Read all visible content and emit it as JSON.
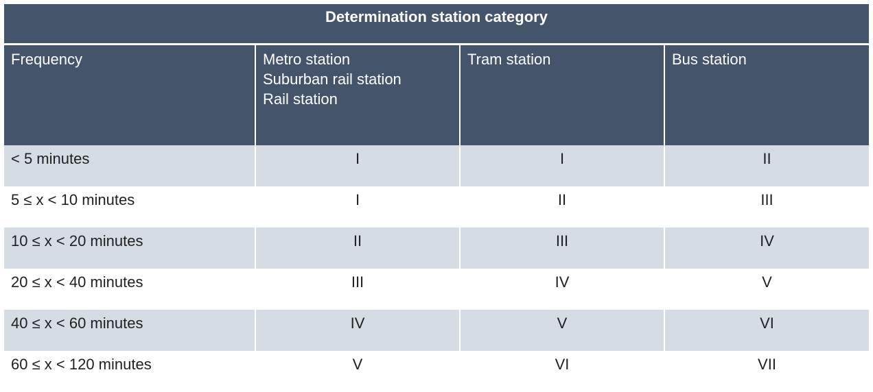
{
  "title": "Determination station category",
  "headers": {
    "frequency": "Frequency",
    "metro": [
      "Metro station",
      "Suburban rail station",
      "Rail station"
    ],
    "tram": "Tram station",
    "bus": "Bus station"
  },
  "rows": [
    {
      "frequency": "< 5 minutes",
      "metro": "I",
      "tram": "I",
      "bus": "II"
    },
    {
      "frequency": "5 ≤ x < 10 minutes",
      "metro": "I",
      "tram": "II",
      "bus": "III"
    },
    {
      "frequency": "10 ≤ x < 20 minutes",
      "metro": "II",
      "tram": "III",
      "bus": "IV"
    },
    {
      "frequency": "20 ≤ x < 40 minutes",
      "metro": "III",
      "tram": "IV",
      "bus": "V"
    },
    {
      "frequency": "40 ≤ x < 60 minutes",
      "metro": "IV",
      "tram": "V",
      "bus": "VI"
    },
    {
      "frequency": "60 ≤ x < 120 minutes",
      "metro": "V",
      "tram": "VI",
      "bus": "VII"
    }
  ],
  "colors": {
    "header_bg": "#44546a",
    "header_text": "#ffffff",
    "row_shade": "#d6dce4",
    "row_plain": "#ffffff"
  }
}
